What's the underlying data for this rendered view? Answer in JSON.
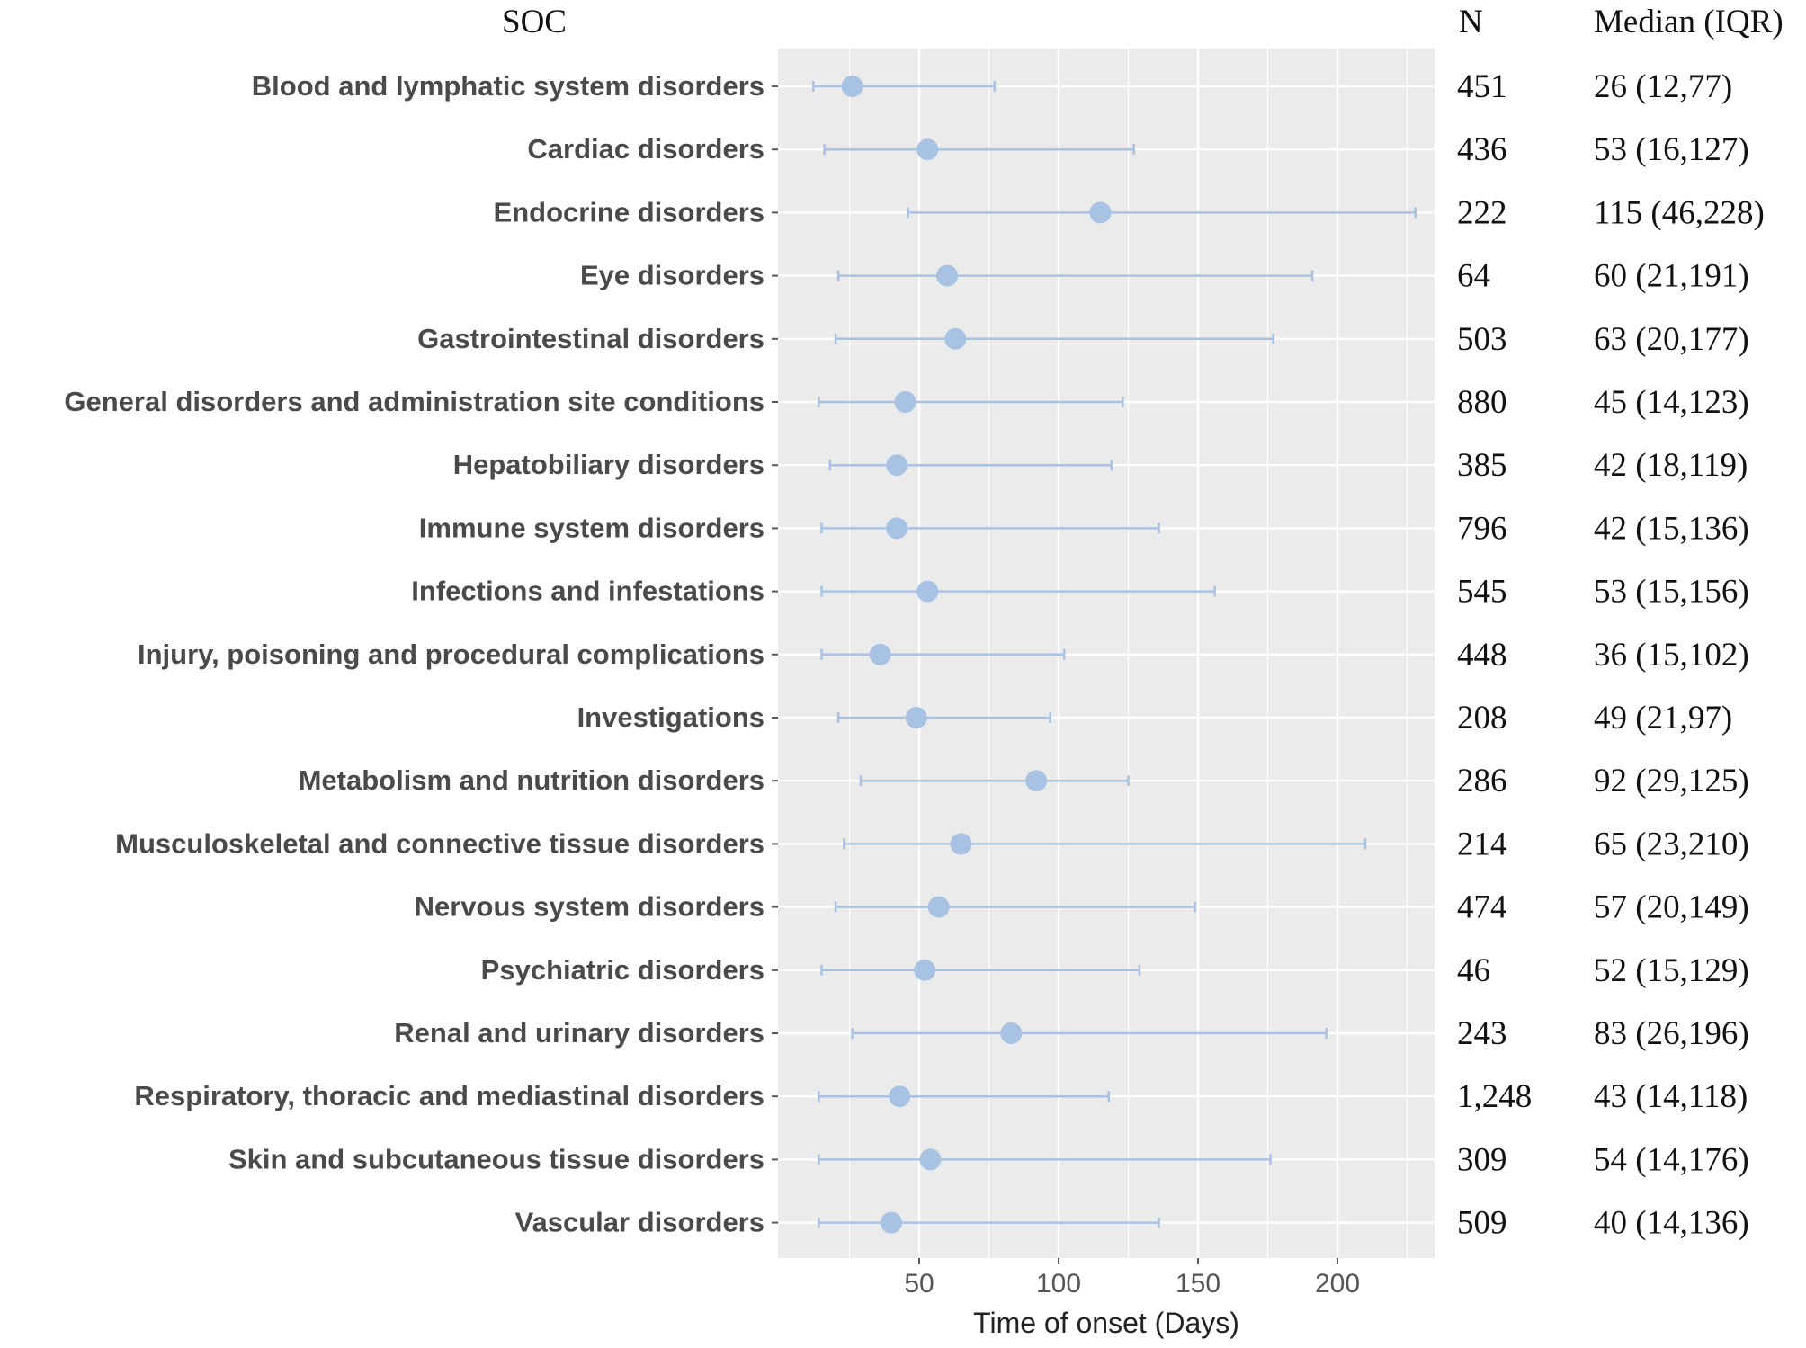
{
  "chart_data": {
    "type": "forest",
    "headers": {
      "soc": "SOC",
      "n": "N",
      "median": "Median (IQR)"
    },
    "xlabel": "Time of onset (Days)",
    "xlim": [
      0,
      235
    ],
    "xticks": [
      50,
      100,
      150,
      200
    ],
    "xtick_labels": [
      "50",
      "100",
      "150",
      "200"
    ],
    "rows": [
      {
        "soc": "Blood and lymphatic system disorders",
        "median": 26,
        "q1": 12,
        "q3": 77,
        "n": "451",
        "median_text": "26 (12,77)"
      },
      {
        "soc": "Cardiac disorders",
        "median": 53,
        "q1": 16,
        "q3": 127,
        "n": "436",
        "median_text": "53 (16,127)"
      },
      {
        "soc": "Endocrine disorders",
        "median": 115,
        "q1": 46,
        "q3": 228,
        "n": "222",
        "median_text": "115 (46,228)"
      },
      {
        "soc": "Eye disorders",
        "median": 60,
        "q1": 21,
        "q3": 191,
        "n": "64",
        "median_text": "60 (21,191)"
      },
      {
        "soc": "Gastrointestinal disorders",
        "median": 63,
        "q1": 20,
        "q3": 177,
        "n": "503",
        "median_text": "63 (20,177)"
      },
      {
        "soc": "General disorders and administration site conditions",
        "median": 45,
        "q1": 14,
        "q3": 123,
        "n": "880",
        "median_text": "45 (14,123)"
      },
      {
        "soc": "Hepatobiliary disorders",
        "median": 42,
        "q1": 18,
        "q3": 119,
        "n": "385",
        "median_text": "42 (18,119)"
      },
      {
        "soc": "Immune system disorders",
        "median": 42,
        "q1": 15,
        "q3": 136,
        "n": "796",
        "median_text": "42 (15,136)"
      },
      {
        "soc": "Infections and infestations",
        "median": 53,
        "q1": 15,
        "q3": 156,
        "n": "545",
        "median_text": "53 (15,156)"
      },
      {
        "soc": "Injury, poisoning and procedural complications",
        "median": 36,
        "q1": 15,
        "q3": 102,
        "n": "448",
        "median_text": "36 (15,102)"
      },
      {
        "soc": "Investigations",
        "median": 49,
        "q1": 21,
        "q3": 97,
        "n": "208",
        "median_text": "49 (21,97)"
      },
      {
        "soc": "Metabolism and nutrition disorders",
        "median": 92,
        "q1": 29,
        "q3": 125,
        "n": "286",
        "median_text": "92 (29,125)"
      },
      {
        "soc": "Musculoskeletal and connective tissue disorders",
        "median": 65,
        "q1": 23,
        "q3": 210,
        "n": "214",
        "median_text": "65 (23,210)"
      },
      {
        "soc": "Nervous system disorders",
        "median": 57,
        "q1": 20,
        "q3": 149,
        "n": "474",
        "median_text": "57 (20,149)"
      },
      {
        "soc": "Psychiatric disorders",
        "median": 52,
        "q1": 15,
        "q3": 129,
        "n": "46",
        "median_text": "52 (15,129)"
      },
      {
        "soc": "Renal and urinary disorders",
        "median": 83,
        "q1": 26,
        "q3": 196,
        "n": "243",
        "median_text": "83 (26,196)"
      },
      {
        "soc": "Respiratory, thoracic and mediastinal disorders",
        "median": 43,
        "q1": 14,
        "q3": 118,
        "n": "1,248",
        "median_text": "43 (14,118)"
      },
      {
        "soc": "Skin and subcutaneous tissue disorders",
        "median": 54,
        "q1": 14,
        "q3": 176,
        "n": "309",
        "median_text": "54 (14,176)"
      },
      {
        "soc": "Vascular disorders",
        "median": 40,
        "q1": 14,
        "q3": 136,
        "n": "509",
        "median_text": "40 (14,136)"
      }
    ],
    "colors": {
      "panel": "#ebebeb",
      "grid": "#ffffff",
      "point": "#a8c2e4",
      "errorbar": "#a8c2e4"
    }
  }
}
